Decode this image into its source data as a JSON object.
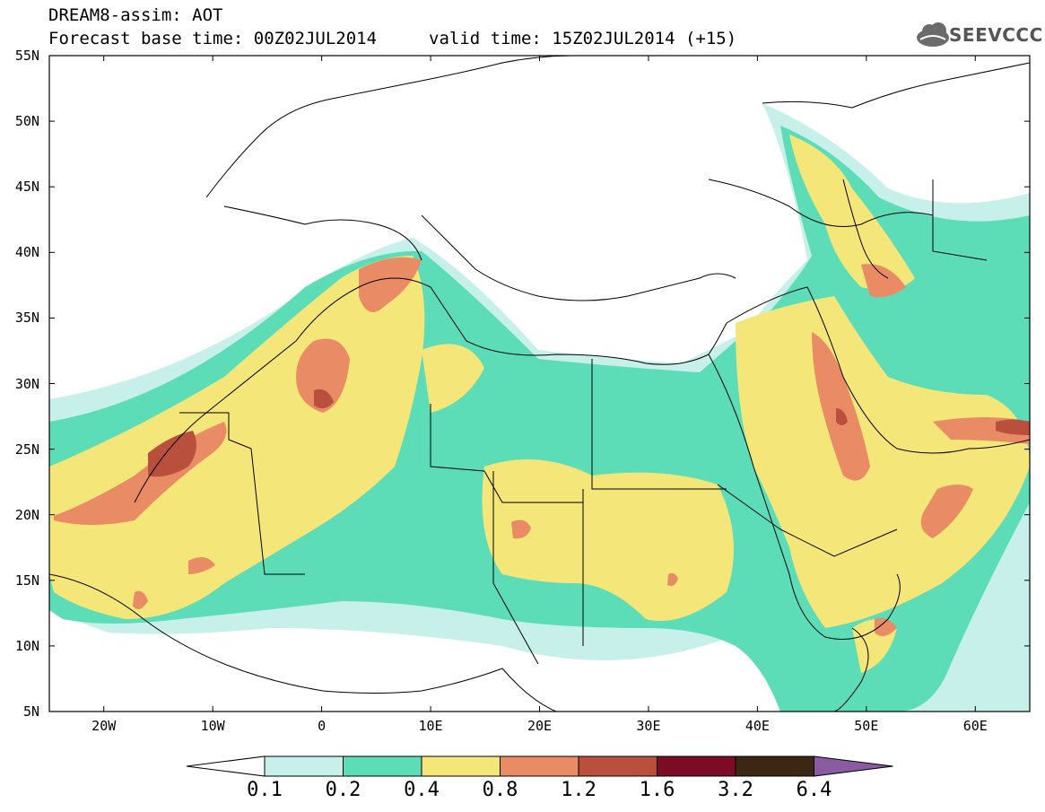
{
  "header": {
    "line1": "DREAM8-assim: AOT",
    "line2": "Forecast base time: 00Z02JUL2014",
    "valid": "valid time: 15Z02JUL2014 (+15)"
  },
  "logo": {
    "text": "SEEVCCC",
    "icon": "cloud-icon"
  },
  "map": {
    "lat_labels": [
      "55N",
      "50N",
      "45N",
      "40N",
      "35N",
      "30N",
      "25N",
      "20N",
      "15N",
      "10N",
      "5N"
    ],
    "lon_labels": [
      "20W",
      "10W",
      "0",
      "10E",
      "20E",
      "30E",
      "40E",
      "50E",
      "60E"
    ],
    "lat_range": [
      5,
      55
    ],
    "lon_range": [
      -25,
      65
    ],
    "variable": "Aerosol Optical Thickness"
  },
  "colorbar": {
    "levels": [
      "0.1",
      "0.2",
      "0.4",
      "0.8",
      "1.2",
      "1.6",
      "3.2",
      "6.4"
    ],
    "colors": [
      "#c6f0e9",
      "#5ddcb8",
      "#f5e67a",
      "#e98b64",
      "#b9503d",
      "#7c0b26",
      "#3c2614",
      "#8a5aa3"
    ],
    "under_color": "#ffffff"
  }
}
